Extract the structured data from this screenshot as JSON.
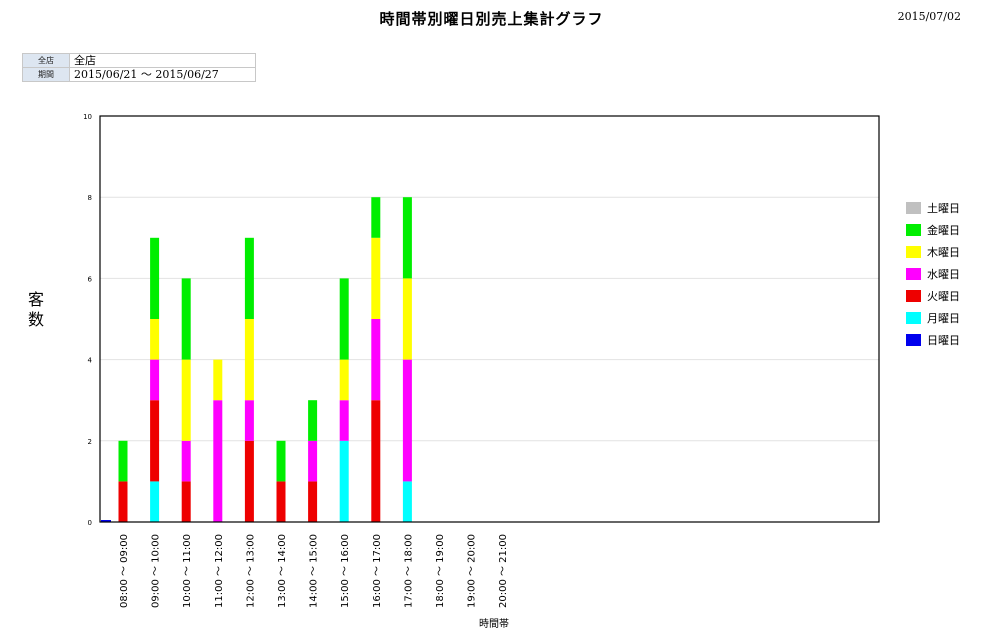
{
  "header": {
    "title": "時間帯別曜日別売上集計グラフ",
    "date": "2015/07/02"
  },
  "filter": {
    "rows": [
      {
        "label": "全店",
        "value": "全店"
      },
      {
        "label": "期間",
        "value": "2015/06/21 ～ 2015/06/27"
      }
    ]
  },
  "chart_data": {
    "type": "bar",
    "stacked": true,
    "title": "時間帯別曜日別売上集計グラフ",
    "ylabel": "客数",
    "xlabel": "時間帯",
    "ylim": [
      0,
      10
    ],
    "yticks": [
      0,
      2,
      4,
      6,
      8,
      10
    ],
    "grid": true,
    "legend_position": "right",
    "categories": [
      "08:00 ～ 09:00",
      "09:00 ～ 10:00",
      "10:00 ～ 11:00",
      "11:00 ～ 12:00",
      "12:00 ～ 13:00",
      "13:00 ～ 14:00",
      "14:00 ～ 15:00",
      "15:00 ～ 16:00",
      "16:00 ～ 17:00",
      "17:00 ～ 18:00",
      "18:00 ～ 19:00",
      "19:00 ～ 20:00",
      "20:00 ～ 21:00"
    ],
    "series": [
      {
        "name": "日曜日",
        "color": "#0000ee",
        "values": [
          0,
          0,
          0,
          0,
          0,
          0,
          0,
          0,
          0,
          0,
          0,
          0,
          0
        ]
      },
      {
        "name": "月曜日",
        "color": "#00ffff",
        "values": [
          0,
          1,
          0,
          0,
          0,
          0,
          0,
          2,
          0,
          1,
          0,
          0,
          0
        ]
      },
      {
        "name": "火曜日",
        "color": "#ee0000",
        "values": [
          1,
          2,
          1,
          0,
          2,
          1,
          1,
          0,
          3,
          0,
          0,
          0,
          0
        ]
      },
      {
        "name": "水曜日",
        "color": "#ff00ff",
        "values": [
          0,
          1,
          1,
          3,
          1,
          0,
          1,
          1,
          2,
          3,
          0,
          0,
          0
        ]
      },
      {
        "name": "木曜日",
        "color": "#ffff00",
        "values": [
          0,
          1,
          2,
          1,
          2,
          0,
          0,
          1,
          2,
          2,
          0,
          0,
          0
        ]
      },
      {
        "name": "金曜日",
        "color": "#00ee00",
        "values": [
          1,
          2,
          2,
          0,
          2,
          1,
          1,
          2,
          1,
          2,
          0,
          0,
          0
        ]
      },
      {
        "name": "土曜日",
        "color": "#c0c0c0",
        "values": [
          0,
          0,
          0,
          0,
          0,
          0,
          0,
          0,
          0,
          0,
          0,
          0,
          0
        ]
      }
    ]
  }
}
